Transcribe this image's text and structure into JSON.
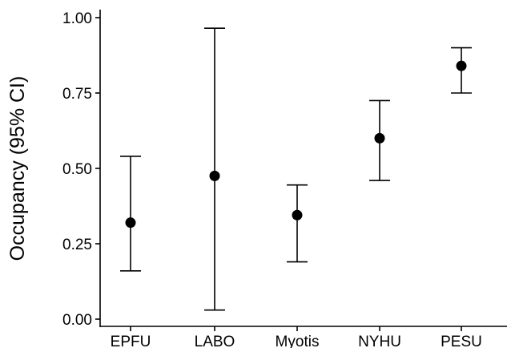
{
  "chart_data": {
    "type": "scatter",
    "subtype": "point-with-error-bars",
    "title": "",
    "xlabel": "",
    "ylabel": "Occupancy (95% CI)",
    "ylim": [
      0,
      1
    ],
    "yticks": [
      "0.00",
      "0.25",
      "0.50",
      "0.75",
      "1.00"
    ],
    "categories": [
      "EPFU",
      "LABO",
      "Myotis",
      "NYHU",
      "PESU"
    ],
    "values": [
      0.32,
      0.475,
      0.345,
      0.6,
      0.84
    ],
    "ci_lower": [
      0.16,
      0.03,
      0.19,
      0.46,
      0.75
    ],
    "ci_upper": [
      0.54,
      0.965,
      0.445,
      0.725,
      0.9
    ],
    "grid": false,
    "legend": "none",
    "point_color": "#000000"
  }
}
